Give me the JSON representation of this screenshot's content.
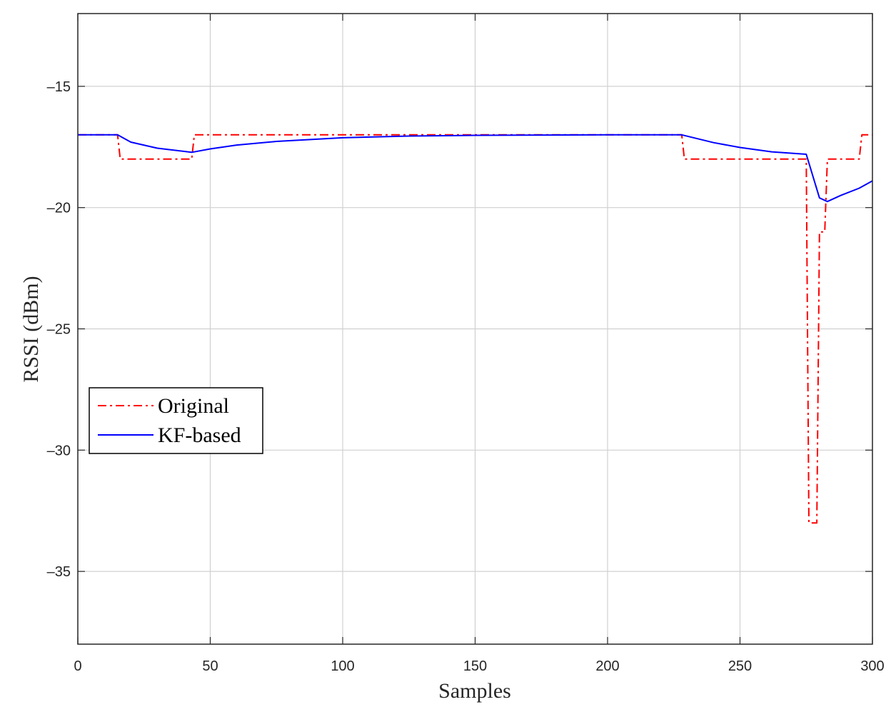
{
  "chart_data": {
    "type": "line",
    "title": "",
    "xlabel": "Samples",
    "ylabel": "RSSI (dBm)",
    "xlim": [
      0,
      300
    ],
    "ylim": [
      -38,
      -12
    ],
    "xticks": [
      0,
      50,
      100,
      150,
      200,
      250,
      300
    ],
    "yticks": [
      -15,
      -20,
      -25,
      -30,
      -35
    ],
    "xtick_labels": [
      "0",
      "50",
      "100",
      "150",
      "200",
      "250",
      "300"
    ],
    "ytick_labels": [
      "–15",
      "–20",
      "–25",
      "–30",
      "–35"
    ],
    "grid": true,
    "legend_position": "left",
    "series": [
      {
        "name": "Original",
        "color": "#ff0000",
        "style": "dash-dot",
        "x": [
          0,
          15,
          16,
          43,
          44,
          228,
          229,
          275,
          276,
          279,
          280,
          282,
          283,
          295,
          296,
          300
        ],
        "y": [
          -17,
          -17,
          -18,
          -18,
          -17,
          -17,
          -18,
          -18,
          -33,
          -33,
          -21,
          -21,
          -18,
          -18,
          -17,
          -17
        ]
      },
      {
        "name": "KF-based",
        "color": "#0000ff",
        "style": "solid",
        "x": [
          0,
          15,
          20,
          30,
          43,
          50,
          60,
          75,
          100,
          125,
          150,
          175,
          200,
          228,
          240,
          250,
          262,
          275,
          280,
          283,
          288,
          295,
          300
        ],
        "y": [
          -17,
          -17,
          -17.3,
          -17.55,
          -17.72,
          -17.58,
          -17.42,
          -17.27,
          -17.12,
          -17.05,
          -17.02,
          -17.01,
          -17,
          -17,
          -17.32,
          -17.52,
          -17.7,
          -17.8,
          -19.6,
          -19.75,
          -19.5,
          -19.2,
          -18.9
        ]
      }
    ]
  }
}
